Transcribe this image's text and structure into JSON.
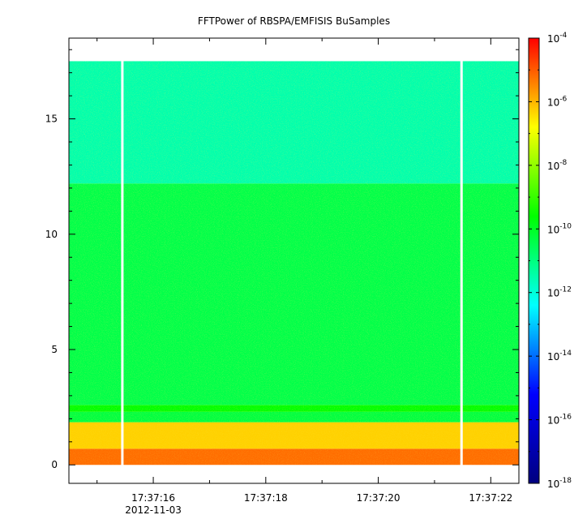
{
  "chart_data": {
    "type": "heatmap",
    "title": "FFTPower of RBSPA/EMFISIS  BuSamples",
    "xlabel": "",
    "ylabel": "",
    "x_axis": {
      "type": "time",
      "range": [
        "17:37:14.5",
        "17:37:22.5"
      ],
      "major_ticks": [
        {
          "value": "17:37:16",
          "label": "17:37:16",
          "sublabel": "2012-11-03"
        },
        {
          "value": "17:37:18",
          "label": "17:37:18",
          "sublabel": ""
        },
        {
          "value": "17:37:20",
          "label": "17:37:20",
          "sublabel": ""
        },
        {
          "value": "17:37:22",
          "label": "17:37:22",
          "sublabel": ""
        }
      ]
    },
    "y_axis": {
      "range": [
        -0.8,
        18.5
      ],
      "ticks": [
        0,
        5,
        10,
        15
      ]
    },
    "colorbar": {
      "scale": "log",
      "range": [
        1e-18,
        0.0001
      ],
      "colormap": "rainbow",
      "colors": [
        "#00007f",
        "#0000ff",
        "#00ffff",
        "#00ff00",
        "#ffff00",
        "#ff0000"
      ],
      "ticks": [
        {
          "value": 1e-18,
          "base": "10",
          "exp": "-18"
        },
        {
          "value": 1e-16,
          "base": "10",
          "exp": "-16"
        },
        {
          "value": 1e-14,
          "base": "10",
          "exp": "-14"
        },
        {
          "value": 1e-12,
          "base": "10",
          "exp": "-12"
        },
        {
          "value": 1e-10,
          "base": "10",
          "exp": "-10"
        },
        {
          "value": 1e-08,
          "base": "10",
          "exp": "-8"
        },
        {
          "value": 1e-06,
          "base": "10",
          "exp": "-6"
        },
        {
          "value": 0.0001,
          "base": "10",
          "exp": "-4"
        }
      ]
    },
    "data_extent": {
      "x": [
        "17:37:14.5",
        "17:37:22.5"
      ],
      "y": [
        0,
        17.5
      ]
    },
    "bands": [
      {
        "y": [
          0,
          0.7
        ],
        "log_power": -5.2
      },
      {
        "y": [
          0.7,
          1.85
        ],
        "log_power": -6.3
      },
      {
        "y": [
          1.85,
          2.3
        ],
        "log_power": -10.3
      },
      {
        "y": [
          2.3,
          2.6
        ],
        "log_power": -9.6
      },
      {
        "y": [
          2.6,
          12.2
        ],
        "log_power": -10.4
      },
      {
        "y": [
          12.2,
          17.5
        ],
        "log_power": -11.5
      }
    ],
    "data_gaps": [
      "17:37:15.45",
      "17:37:21.48"
    ]
  }
}
